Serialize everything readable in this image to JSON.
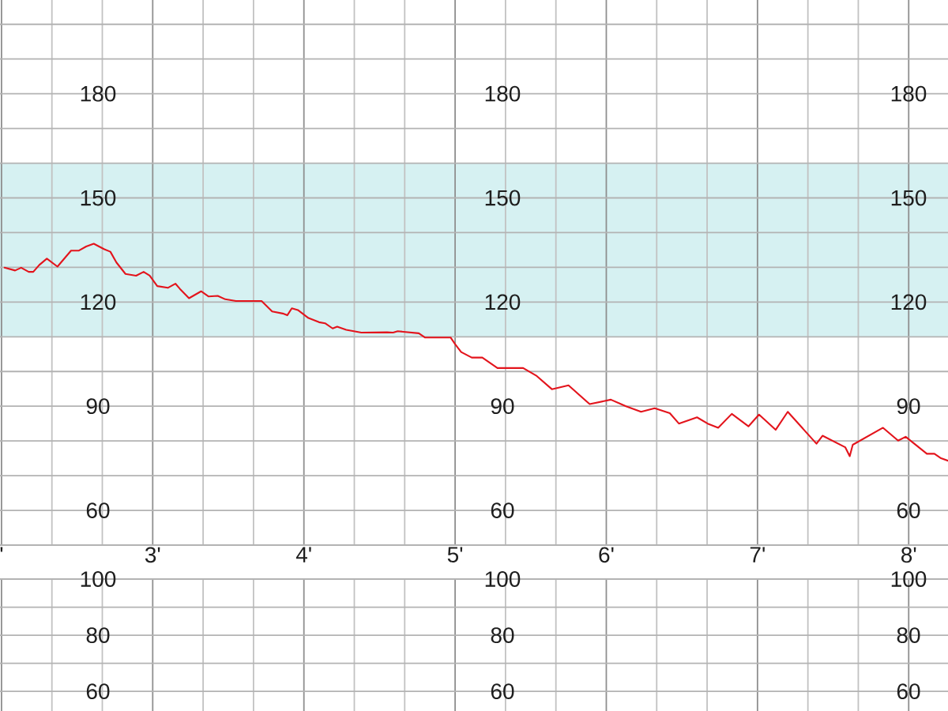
{
  "chart_data": [
    {
      "type": "line",
      "x": [
        2.02,
        2.09,
        2.13,
        2.18,
        2.21,
        2.25,
        2.3,
        2.37,
        2.46,
        2.51,
        2.56,
        2.61,
        2.68,
        2.72,
        2.76,
        2.82,
        2.89,
        2.94,
        2.98,
        3.03,
        3.1,
        3.15,
        3.18,
        3.24,
        3.32,
        3.37,
        3.43,
        3.48,
        3.55,
        3.72,
        3.79,
        3.86,
        3.89,
        3.92,
        3.96,
        4.03,
        4.1,
        4.14,
        4.19,
        4.22,
        4.28,
        4.38,
        4.55,
        4.59,
        4.62,
        4.76,
        4.8,
        4.97,
        5.0,
        5.04,
        5.11,
        5.18,
        5.28,
        5.45,
        5.54,
        5.64,
        5.75,
        5.89,
        6.03,
        6.13,
        6.23,
        6.32,
        6.42,
        6.48,
        6.6,
        6.67,
        6.74,
        6.83,
        6.94,
        7.01,
        7.12,
        7.2,
        7.39,
        7.43,
        7.58,
        7.61,
        7.63,
        7.83,
        7.93,
        7.98,
        8.12,
        8.17,
        8.21,
        8.26
      ],
      "series": [
        {
          "color": "#e3141c",
          "values": [
            129.9,
            129.1,
            129.9,
            128.7,
            128.7,
            130.7,
            132.5,
            130.2,
            134.8,
            134.8,
            136.0,
            136.8,
            135.2,
            134.5,
            131.4,
            128.1,
            127.6,
            128.7,
            127.6,
            124.6,
            124.1,
            125.3,
            123.8,
            121.1,
            123.1,
            121.6,
            121.8,
            120.8,
            120.3,
            120.3,
            117.3,
            116.7,
            116.2,
            118.2,
            117.7,
            115.4,
            114.2,
            113.9,
            112.4,
            112.9,
            112.0,
            111.2,
            111.3,
            111.2,
            111.6,
            111.0,
            109.8,
            109.8,
            107.9,
            105.6,
            104.0,
            104.0,
            101.0,
            101.0,
            98.7,
            94.9,
            96.0,
            90.6,
            91.9,
            90.0,
            88.4,
            89.4,
            88.0,
            85.0,
            86.8,
            85.0,
            83.8,
            87.8,
            84.2,
            87.6,
            83.2,
            88.4,
            79.2,
            81.5,
            78.2,
            75.6,
            78.9,
            83.8,
            80.1,
            81.2,
            76.3,
            76.3,
            75.1,
            74.3
          ]
        }
      ],
      "xlim": [
        1.99,
        8.26
      ],
      "ylim": [
        50,
        207
      ],
      "y2lim": [
        50,
        207
      ],
      "y3lim": [
        50,
        207
      ],
      "xticks": [
        {
          "value": 2,
          "label": "'"
        },
        {
          "value": 3,
          "label": "3'"
        },
        {
          "value": 4,
          "label": "4'"
        },
        {
          "value": 5,
          "label": "5'"
        },
        {
          "value": 6,
          "label": "6'"
        },
        {
          "value": 7,
          "label": "7'"
        },
        {
          "value": 8,
          "label": "8'"
        }
      ],
      "yticks": [
        60,
        90,
        120,
        150,
        180
      ],
      "y2ticks": [
        60,
        90,
        120,
        150,
        180
      ],
      "y3ticks": [
        60,
        90,
        120,
        150,
        180
      ],
      "grid": true,
      "bands": [
        {
          "axis": "y",
          "from": 110,
          "to": 160,
          "color": "#d6f1f2"
        }
      ]
    },
    {
      "type": "line",
      "xlim": [
        1.99,
        8.26
      ],
      "ylim": [
        53,
        100
      ],
      "y2lim": [
        53,
        100
      ],
      "y3lim": [
        53,
        100
      ],
      "xticks": [
        2,
        3,
        4,
        5,
        6,
        7,
        8
      ],
      "yticks": [
        60,
        80,
        100
      ],
      "y2ticks": [
        60,
        80,
        100
      ],
      "y3ticks": [
        60,
        80,
        100
      ],
      "grid": true,
      "tick_labels": "y"
    }
  ]
}
